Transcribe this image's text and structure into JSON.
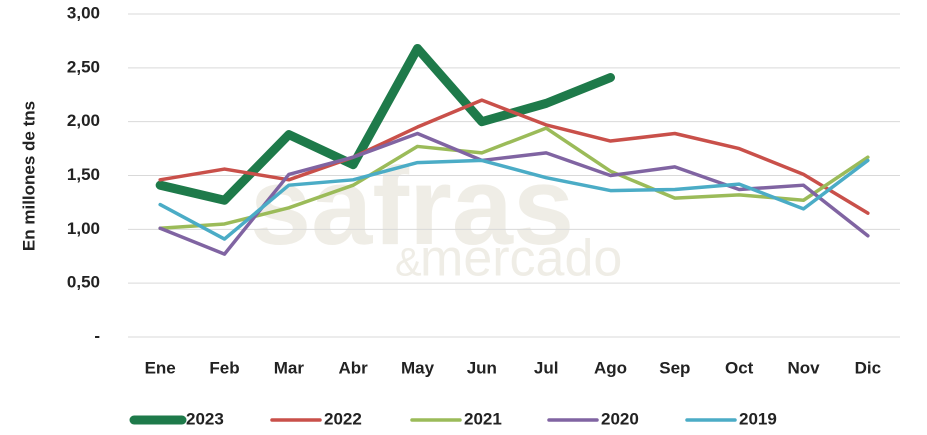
{
  "chart_data": {
    "type": "line",
    "y_label": "En millones de tns",
    "watermark": [
      "safras",
      "&",
      "mercado"
    ],
    "categories": [
      "Ene",
      "Feb",
      "Mar",
      "Abr",
      "May",
      "Jun",
      "Jul",
      "Ago",
      "Sep",
      "Oct",
      "Nov",
      "Dic"
    ],
    "series": [
      {
        "name": "2023",
        "color": "#1e7a4a",
        "width": 9,
        "values": [
          1.41,
          1.27,
          1.88,
          1.6,
          2.68,
          2.0,
          2.17,
          2.41,
          null,
          null,
          null,
          null
        ]
      },
      {
        "name": "2022",
        "color": "#c9504a",
        "width": 3.5,
        "values": [
          1.46,
          1.56,
          1.46,
          1.67,
          1.95,
          2.2,
          1.97,
          1.82,
          1.89,
          1.75,
          1.51,
          1.15
        ]
      },
      {
        "name": "2021",
        "color": "#9bbb59",
        "width": 3.5,
        "values": [
          1.01,
          1.05,
          1.2,
          1.41,
          1.77,
          1.71,
          1.94,
          1.54,
          1.29,
          1.32,
          1.27,
          1.67
        ]
      },
      {
        "name": "2020",
        "color": "#8064a2",
        "width": 3.5,
        "values": [
          1.01,
          0.77,
          1.51,
          1.67,
          1.89,
          1.64,
          1.71,
          1.5,
          1.58,
          1.37,
          1.41,
          0.94
        ]
      },
      {
        "name": "2019",
        "color": "#4bacc6",
        "width": 3.5,
        "values": [
          1.23,
          0.91,
          1.41,
          1.46,
          1.62,
          1.64,
          1.48,
          1.36,
          1.37,
          1.42,
          1.19,
          1.64
        ]
      }
    ],
    "ylim": [
      0,
      3
    ],
    "yticks": [
      {
        "value": 0,
        "label": "-"
      },
      {
        "value": 0.5,
        "label": "0,50"
      },
      {
        "value": 1,
        "label": "1,00"
      },
      {
        "value": 1.5,
        "label": "1,50"
      },
      {
        "value": 2,
        "label": "2,00"
      },
      {
        "value": 2.5,
        "label": "2,50"
      },
      {
        "value": 3,
        "label": "3,00"
      }
    ],
    "grid": true
  }
}
